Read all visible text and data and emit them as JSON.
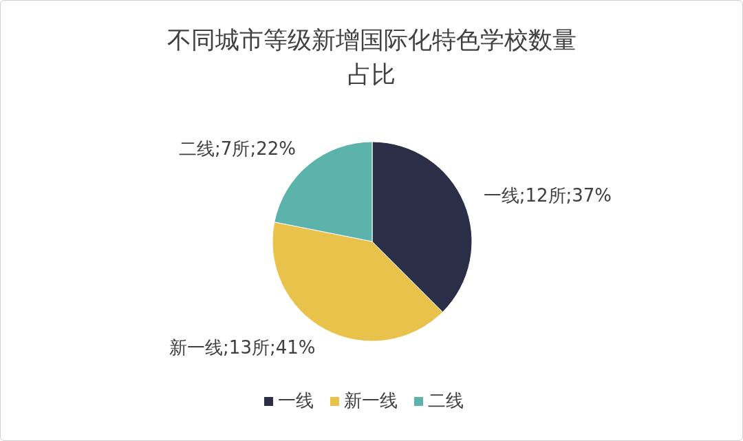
{
  "chart_data": {
    "type": "pie",
    "title": "不同城市等级新增国际化特色学校数量占比",
    "categories": [
      "一线",
      "新一线",
      "二线"
    ],
    "values": [
      12,
      13,
      7
    ],
    "colors": [
      "#2b2e47",
      "#e8c24b",
      "#5cb3ab"
    ],
    "value_labels": [
      "一线;12所;37%",
      "新一线;13所;41%",
      "二线;7所;22%"
    ],
    "legend": "bottom"
  }
}
